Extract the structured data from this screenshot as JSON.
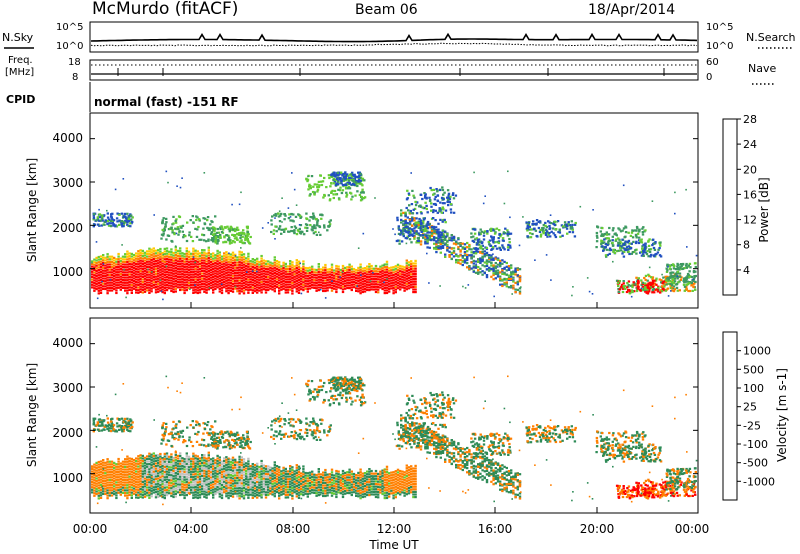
{
  "header": {
    "station": "McMurdo (fitACF)",
    "beam": "Beam 06",
    "date": "18/Apr/2014"
  },
  "noise_panel": {
    "left_label": "N.Sky",
    "right_label": "N.Search",
    "left_ticks": [
      "10^5",
      "10^0"
    ],
    "right_ticks": [
      "10^5",
      "10^0"
    ]
  },
  "freq_panel": {
    "left_label_1": "Freq.",
    "left_label_2": "[MHz]",
    "right_label": "Nave",
    "left_ticks": [
      "18",
      "8"
    ],
    "right_ticks": [
      "60",
      "0"
    ]
  },
  "cpid": {
    "label": "CPID",
    "value": "normal (fast) -151 RF"
  },
  "colors": {
    "red": "#ff0000",
    "orange": "#ff7f00",
    "yellow": "#ffc800",
    "light_green": "#66cc33",
    "green": "#3d9960",
    "teal": "#2e8b57",
    "blue": "#2050c0",
    "light_blue": "#1a40d0",
    "gray": "#c0c0c0"
  },
  "chart_data": [
    {
      "type": "heatmap",
      "name": "power",
      "ylabel": "Slant Range [km]",
      "yticks": [
        "1000",
        "2000",
        "3000",
        "4000"
      ],
      "colorbar_label": "Power [dB]",
      "colorbar_ticks": [
        "4",
        "8",
        "12",
        "16",
        "20",
        "24",
        "28"
      ],
      "colorbar_colors": [
        "#0000ff",
        "#2050c0",
        "#3d9960",
        "#66cc33",
        "#ffc800",
        "#ff7f00",
        "#ff0000"
      ]
    },
    {
      "type": "heatmap",
      "name": "velocity",
      "ylabel": "Slant Range [km]",
      "yticks": [
        "1000",
        "2000",
        "3000",
        "4000"
      ],
      "colorbar_label": "Velocity [m s-1]",
      "colorbar_ticks": [
        "1000",
        "500",
        "100",
        "25",
        "-25",
        "-100",
        "-500",
        "-1000"
      ],
      "colorbar_colors": [
        "#2050c0",
        "#2e8b57",
        "#3d9960",
        "#66cc33",
        "#c0c0c0",
        "#ffc800",
        "#ff7f00",
        "#ff4000",
        "#ff0000"
      ],
      "xticks": [
        "00:00",
        "04:00",
        "08:00",
        "12:00",
        "16:00",
        "20:00",
        "00:00"
      ],
      "xlabel": "Time UT"
    }
  ]
}
